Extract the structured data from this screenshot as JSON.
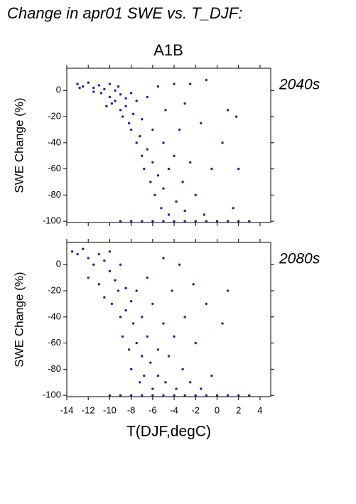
{
  "title": "Change in apr01 SWE vs. T_DJF:",
  "scenario": "A1B",
  "chart_data": [
    {
      "type": "scatter",
      "y_label": "SWE Change (%)",
      "xlim": [
        -14,
        5
      ],
      "ylim": [
        -101,
        17
      ],
      "xticks": [
        -14,
        -12,
        -10,
        -8,
        -6,
        -4,
        -2,
        0,
        2,
        4
      ],
      "yticks": [
        0,
        -20,
        -40,
        -60,
        -80,
        -100
      ],
      "series": [
        {
          "name": "2040s",
          "color": "#2222aa",
          "x": [
            -13,
            -12.5,
            -12,
            -11.5,
            -11,
            -10.8,
            -10.5,
            -10,
            -10,
            -9.8,
            -9.5,
            -9.5,
            -9.2,
            -9,
            -9,
            -8.8,
            -8.5,
            -8.5,
            -8.2,
            -8,
            -8,
            -7.8,
            -7.5,
            -7.5,
            -7.2,
            -7,
            -7,
            -6.8,
            -6.5,
            -6.5,
            -6.2,
            -6,
            -6,
            -5.8,
            -5.5,
            -5.5,
            -5.2,
            -5,
            -5,
            -4.8,
            -4.5,
            -4.5,
            -4,
            -4,
            -3.8,
            -3.5,
            -3.2,
            -3,
            -3,
            -2.5,
            -2.5,
            -2,
            -1.5,
            -1.2,
            -1,
            -0.5,
            0,
            0.5,
            1,
            1.5,
            2,
            3,
            -9,
            -8,
            -7,
            -6,
            -5,
            -4,
            -3,
            -2,
            -1,
            1,
            -11.5,
            -10.3,
            -12.8,
            2,
            1.8
          ],
          "values": [
            5,
            3,
            6,
            2,
            4,
            -2,
            1,
            5,
            -5,
            -10,
            0,
            -8,
            3,
            -15,
            -3,
            -20,
            -6,
            -12,
            -25,
            -2,
            -30,
            -18,
            -40,
            -8,
            -35,
            -50,
            -22,
            -60,
            -45,
            -5,
            -70,
            -55,
            -30,
            -80,
            -65,
            3,
            -90,
            -40,
            -75,
            -15,
            -60,
            -95,
            5,
            -50,
            -85,
            -30,
            -70,
            -10,
            -92,
            5,
            -55,
            -80,
            -25,
            -95,
            8,
            -60,
            -100,
            -40,
            -15,
            -90,
            -100,
            -100,
            -100,
            -100,
            -100,
            -100,
            -100,
            -100,
            -100,
            -100,
            -100,
            -100,
            -1,
            -12,
            2,
            -60,
            -20
          ]
        }
      ]
    },
    {
      "type": "scatter",
      "y_label": "SWE Change (%)",
      "x_label": "T(DJF,degC)",
      "xlim": [
        -14,
        5
      ],
      "ylim": [
        -101,
        17
      ],
      "xticks": [
        -14,
        -12,
        -10,
        -8,
        -6,
        -4,
        -2,
        0,
        2,
        4
      ],
      "yticks": [
        0,
        -20,
        -40,
        -60,
        -80,
        -100
      ],
      "series": [
        {
          "name": "2080s",
          "color": "#2222aa",
          "x": [
            -13.5,
            -13,
            -12.5,
            -12,
            -12,
            -11.5,
            -11,
            -11,
            -10.5,
            -10.5,
            -10,
            -10,
            -9.8,
            -9.5,
            -9.2,
            -9,
            -9,
            -8.8,
            -8.5,
            -8.5,
            -8.2,
            -8,
            -8,
            -7.8,
            -7.5,
            -7.5,
            -7.2,
            -7,
            -7,
            -6.8,
            -6.5,
            -6.5,
            -6.2,
            -6,
            -6,
            -5.5,
            -5.5,
            -5,
            -5,
            -4.8,
            -4.5,
            -4.2,
            -4,
            -3.8,
            -3.5,
            -3.2,
            -3,
            -2.5,
            -2.2,
            -2,
            -1.5,
            -1,
            -0.5,
            0,
            0.5,
            1,
            1,
            2,
            3,
            -10,
            -9,
            -8,
            -7,
            -6,
            -5,
            -4,
            -3,
            -2,
            -1
          ],
          "values": [
            10,
            8,
            12,
            5,
            -10,
            0,
            8,
            -15,
            3,
            -25,
            10,
            -5,
            -30,
            -12,
            -20,
            -40,
            0,
            -55,
            -18,
            -35,
            -65,
            -28,
            -80,
            -45,
            -60,
            -20,
            -90,
            -70,
            -40,
            -85,
            -55,
            -10,
            -75,
            -95,
            -30,
            -65,
            -85,
            -45,
            5,
            -90,
            -70,
            -20,
            -55,
            -95,
            0,
            -80,
            -40,
            -90,
            -15,
            -60,
            -95,
            -30,
            -85,
            -100,
            -45,
            -20,
            -100,
            -100,
            -100,
            -100,
            -100,
            -100,
            -100,
            -100,
            -100,
            -100,
            -100,
            -100,
            -100
          ]
        }
      ]
    }
  ]
}
